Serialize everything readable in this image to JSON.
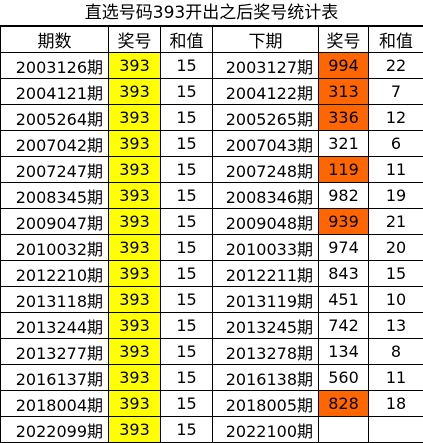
{
  "title": "直选号码393开出之后奖号统计表",
  "headers": [
    "期数",
    "奖号",
    "和值",
    "下期",
    "奖号",
    "和值"
  ],
  "colors": {
    "highlight_number": "#ffff00",
    "highlight_next": "#ff6600"
  },
  "rows": [
    {
      "issue": "2003126期",
      "number": "393",
      "sum": "15",
      "next_issue": "2003127期",
      "next_number": "994",
      "next_sum": "22",
      "next_highlight": true
    },
    {
      "issue": "2004121期",
      "number": "393",
      "sum": "15",
      "next_issue": "2004122期",
      "next_number": "313",
      "next_sum": "7",
      "next_highlight": true
    },
    {
      "issue": "2005264期",
      "number": "393",
      "sum": "15",
      "next_issue": "2005265期",
      "next_number": "336",
      "next_sum": "12",
      "next_highlight": true
    },
    {
      "issue": "2007042期",
      "number": "393",
      "sum": "15",
      "next_issue": "2007043期",
      "next_number": "321",
      "next_sum": "6",
      "next_highlight": false
    },
    {
      "issue": "2007247期",
      "number": "393",
      "sum": "15",
      "next_issue": "2007248期",
      "next_number": "119",
      "next_sum": "11",
      "next_highlight": true
    },
    {
      "issue": "2008345期",
      "number": "393",
      "sum": "15",
      "next_issue": "2008346期",
      "next_number": "982",
      "next_sum": "19",
      "next_highlight": false
    },
    {
      "issue": "2009047期",
      "number": "393",
      "sum": "15",
      "next_issue": "2009048期",
      "next_number": "939",
      "next_sum": "21",
      "next_highlight": true
    },
    {
      "issue": "2010032期",
      "number": "393",
      "sum": "15",
      "next_issue": "2010033期",
      "next_number": "974",
      "next_sum": "20",
      "next_highlight": false
    },
    {
      "issue": "2012210期",
      "number": "393",
      "sum": "15",
      "next_issue": "2012211期",
      "next_number": "843",
      "next_sum": "15",
      "next_highlight": false
    },
    {
      "issue": "2013118期",
      "number": "393",
      "sum": "15",
      "next_issue": "2013119期",
      "next_number": "451",
      "next_sum": "10",
      "next_highlight": false
    },
    {
      "issue": "2013244期",
      "number": "393",
      "sum": "15",
      "next_issue": "2013245期",
      "next_number": "742",
      "next_sum": "13",
      "next_highlight": false
    },
    {
      "issue": "2013277期",
      "number": "393",
      "sum": "15",
      "next_issue": "2013278期",
      "next_number": "134",
      "next_sum": "8",
      "next_highlight": false
    },
    {
      "issue": "2016137期",
      "number": "393",
      "sum": "15",
      "next_issue": "2016138期",
      "next_number": "560",
      "next_sum": "11",
      "next_highlight": false
    },
    {
      "issue": "2018004期",
      "number": "393",
      "sum": "15",
      "next_issue": "2018005期",
      "next_number": "828",
      "next_sum": "18",
      "next_highlight": true
    },
    {
      "issue": "2022099期",
      "number": "393",
      "sum": "15",
      "next_issue": "2022100期",
      "next_number": "",
      "next_sum": "",
      "next_highlight": false
    }
  ]
}
